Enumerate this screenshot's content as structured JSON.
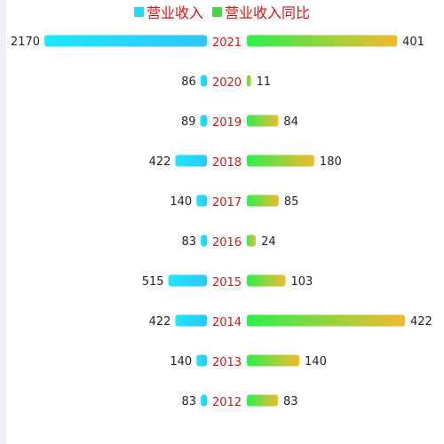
{
  "colors": {
    "left_start": "#1de8ff",
    "left_end": "#2ec6f5",
    "right_start": "#2cf04c",
    "right_end": "#f4b82e",
    "year_text": "#e01414",
    "value_text": "#222222",
    "legend_text": "#e01414"
  },
  "legend": [
    {
      "label": "营业收入",
      "color": "#25d8f6",
      "icon": "square-legend-icon"
    },
    {
      "label": "营业收入同比",
      "color": "#4ad43c",
      "icon": "square-legend-icon"
    }
  ],
  "chart_data": {
    "type": "bar",
    "orientation": "horizontal-butterfly",
    "categories": [
      "2021",
      "2020",
      "2019",
      "2018",
      "2017",
      "2016",
      "2015",
      "2014",
      "2013",
      "2012"
    ],
    "series": [
      {
        "name": "营业收入",
        "side": "left",
        "values": [
          2170,
          86,
          89,
          422,
          140,
          83,
          515,
          422,
          140,
          83
        ]
      },
      {
        "name": "营业收入同比",
        "side": "right",
        "values": [
          401,
          11,
          84,
          180,
          85,
          24,
          103,
          422,
          140,
          83
        ]
      }
    ],
    "title": "",
    "xlabel": "",
    "ylabel": "",
    "grid": false,
    "legend_position": "top-center"
  }
}
